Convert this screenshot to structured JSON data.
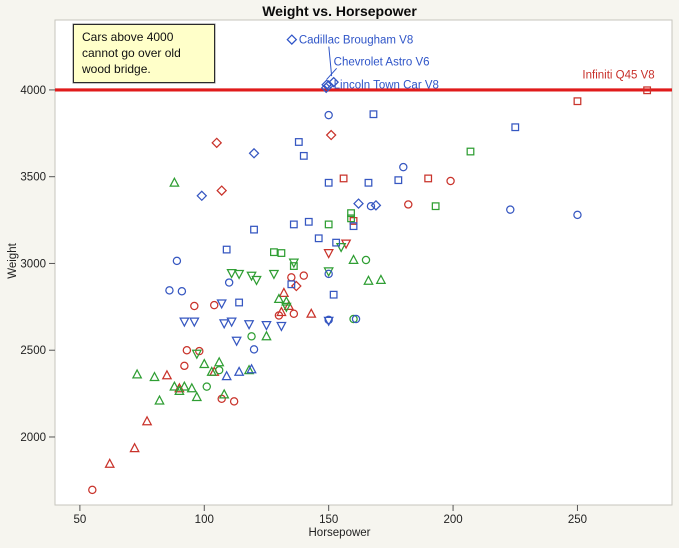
{
  "chart_data": {
    "type": "scatter",
    "title": "Weight vs. Horsepower",
    "xlabel": "Horsepower",
    "ylabel": "Weight",
    "note": "Cars above 4000\ncannot go over old\nwood bridge.",
    "xlim": [
      40,
      288
    ],
    "ylim": [
      1608,
      4403
    ],
    "x_ticks": [
      50,
      100,
      150,
      200,
      250
    ],
    "y_ticks": [
      2000,
      2500,
      3000,
      3500,
      4000
    ],
    "grid": false,
    "legend": "none",
    "reference_line": {
      "y": 4000,
      "color": "#e01b1b",
      "width": 3.2
    },
    "series": [
      {
        "name": "red-circle",
        "marker": "circle",
        "color": "#c9332b",
        "points": [
          [
            55,
            1695
          ],
          [
            107,
            2220
          ],
          [
            112,
            2205
          ],
          [
            92,
            2410
          ],
          [
            93,
            2500
          ],
          [
            98,
            2495
          ],
          [
            135,
            2920
          ],
          [
            140,
            2930
          ],
          [
            182,
            3340
          ],
          [
            199,
            3475
          ],
          [
            96,
            2755
          ],
          [
            104,
            2760
          ],
          [
            130,
            2700
          ],
          [
            136,
            2710
          ]
        ]
      },
      {
        "name": "red-triangle-up",
        "marker": "triangle-up",
        "color": "#c9332b",
        "points": [
          [
            62,
            1845
          ],
          [
            72,
            1935
          ],
          [
            77,
            2090
          ],
          [
            90,
            2280
          ],
          [
            104,
            2375
          ],
          [
            131,
            2720
          ],
          [
            134,
            2755
          ],
          [
            143,
            2710
          ],
          [
            132,
            2830
          ],
          [
            85,
            2355
          ]
        ]
      },
      {
        "name": "red-triangle-down",
        "marker": "triangle-down",
        "color": "#c9332b",
        "points": [
          [
            150,
            3060
          ],
          [
            157,
            3115
          ]
        ]
      },
      {
        "name": "red-square",
        "marker": "square",
        "color": "#c9332b",
        "points": [
          [
            156,
            3490
          ],
          [
            190,
            3490
          ],
          [
            250,
            3935
          ],
          [
            160,
            3245
          ],
          [
            278,
            3998
          ]
        ]
      },
      {
        "name": "red-diamond",
        "marker": "diamond",
        "color": "#c9332b",
        "points": [
          [
            105,
            3695
          ],
          [
            107,
            3420
          ],
          [
            151,
            3740
          ],
          [
            137,
            2870
          ]
        ]
      },
      {
        "name": "green-triangle-up",
        "marker": "triangle-up",
        "color": "#2f9e33",
        "points": [
          [
            73,
            2360
          ],
          [
            80,
            2345
          ],
          [
            82,
            2210
          ],
          [
            88,
            2290
          ],
          [
            90,
            2265
          ],
          [
            92,
            2290
          ],
          [
            95,
            2280
          ],
          [
            100,
            2420
          ],
          [
            103,
            2375
          ],
          [
            106,
            2430
          ],
          [
            97,
            2230
          ],
          [
            108,
            2245
          ],
          [
            88,
            3465
          ],
          [
            125,
            2580
          ],
          [
            130,
            2795
          ],
          [
            133,
            2780
          ],
          [
            160,
            3020
          ],
          [
            166,
            2900
          ],
          [
            171,
            2905
          ],
          [
            118,
            2385
          ]
        ]
      },
      {
        "name": "green-triangle-down",
        "marker": "triangle-down",
        "color": "#2f9e33",
        "points": [
          [
            97,
            2480
          ],
          [
            111,
            2945
          ],
          [
            114,
            2940
          ],
          [
            119,
            2930
          ],
          [
            128,
            2940
          ],
          [
            136,
            3005
          ],
          [
            150,
            2955
          ],
          [
            155,
            3095
          ],
          [
            133,
            2750
          ],
          [
            121,
            2905
          ]
        ]
      },
      {
        "name": "green-circle",
        "marker": "circle",
        "color": "#2f9e33",
        "points": [
          [
            101,
            2290
          ],
          [
            106,
            2385
          ],
          [
            119,
            2580
          ],
          [
            160,
            2680
          ],
          [
            165,
            3020
          ]
        ]
      },
      {
        "name": "green-square",
        "marker": "square",
        "color": "#2f9e33",
        "points": [
          [
            128,
            3065
          ],
          [
            159,
            3290
          ],
          [
            159,
            3260
          ],
          [
            193,
            3330
          ],
          [
            207,
            3645
          ],
          [
            150,
            3225
          ],
          [
            136,
            2985
          ],
          [
            131,
            3060
          ]
        ]
      },
      {
        "name": "blue-circle",
        "marker": "circle",
        "color": "#3657c1",
        "points": [
          [
            89,
            3015
          ],
          [
            150,
            3855
          ],
          [
            180,
            3555
          ],
          [
            223,
            3310
          ],
          [
            250,
            3280
          ],
          [
            167,
            3330
          ],
          [
            110,
            2890
          ],
          [
            86,
            2845
          ],
          [
            91,
            2840
          ],
          [
            150,
            2940
          ],
          [
            120,
            2505
          ],
          [
            150,
            2675
          ],
          [
            161,
            2680
          ]
        ]
      },
      {
        "name": "blue-square",
        "marker": "square",
        "color": "#3657c1",
        "points": [
          [
            225,
            3785
          ],
          [
            138,
            3700
          ],
          [
            140,
            3620
          ],
          [
            150,
            3465
          ],
          [
            166,
            3465
          ],
          [
            178,
            3480
          ],
          [
            168,
            3860
          ],
          [
            120,
            3195
          ],
          [
            109,
            3080
          ],
          [
            136,
            3225
          ],
          [
            142,
            3240
          ],
          [
            146,
            3145
          ],
          [
            153,
            3120
          ],
          [
            160,
            3215
          ],
          [
            135,
            2880
          ],
          [
            152,
            2820
          ],
          [
            114,
            2775
          ]
        ]
      },
      {
        "name": "blue-diamond",
        "marker": "diamond",
        "color": "#3657c1",
        "points": [
          [
            99,
            3390
          ],
          [
            120,
            3635
          ],
          [
            162,
            3345
          ],
          [
            169,
            3335
          ],
          [
            152,
            4045
          ],
          [
            150,
            4026
          ],
          [
            149,
            4012
          ]
        ]
      },
      {
        "name": "blue-triangle-down",
        "marker": "triangle-down",
        "color": "#3657c1",
        "points": [
          [
            108,
            2655
          ],
          [
            111,
            2665
          ],
          [
            118,
            2650
          ],
          [
            125,
            2645
          ],
          [
            131,
            2640
          ],
          [
            150,
            2670
          ],
          [
            107,
            2770
          ],
          [
            96,
            2665
          ],
          [
            92,
            2665
          ],
          [
            113,
            2555
          ]
        ]
      },
      {
        "name": "blue-triangle-up",
        "marker": "triangle-up",
        "color": "#3657c1",
        "points": [
          [
            109,
            2350
          ],
          [
            114,
            2375
          ],
          [
            119,
            2390
          ]
        ]
      }
    ],
    "annotations": [
      {
        "text": "Cadillac Brougham V8",
        "color": "#2f55c8",
        "point": [
          152,
          4045
        ],
        "label_pos": [
          138,
          4290
        ],
        "glyph": true,
        "leader": true,
        "leader_dx": 30
      },
      {
        "text": "Chevrolet Astro V6",
        "color": "#2f55c8",
        "point": [
          150,
          4026
        ],
        "label_pos": [
          152,
          4165
        ],
        "glyph": false,
        "leader": true,
        "leader_dx": 3
      },
      {
        "text": "Lincoln Town Car V8",
        "color": "#2f55c8",
        "point": [
          149,
          4012
        ],
        "label_pos": [
          152,
          4030
        ],
        "glyph": true,
        "leader": false,
        "leader_dx": 0
      },
      {
        "text": "Infiniti Q45 V8",
        "color": "#c8302a",
        "point": [
          278,
          3998
        ],
        "label_pos": [
          252,
          4090
        ],
        "glyph": false,
        "leader": false,
        "leader_dx": 0
      }
    ]
  }
}
